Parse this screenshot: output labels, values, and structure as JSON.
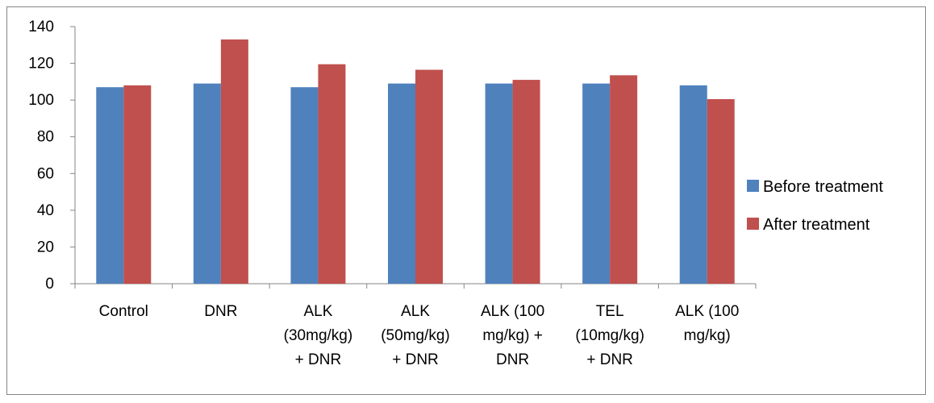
{
  "chart_data": {
    "type": "bar",
    "title": "",
    "xlabel": "",
    "ylabel": "",
    "ylim": [
      0,
      140
    ],
    "yticks": [
      0,
      20,
      40,
      60,
      80,
      100,
      120,
      140
    ],
    "grid": false,
    "legend_position": "right",
    "categories": [
      [
        "Control"
      ],
      [
        "DNR"
      ],
      [
        "ALK",
        "(30mg/kg)",
        "+ DNR"
      ],
      [
        "ALK",
        "(50mg/kg)",
        "+ DNR"
      ],
      [
        "ALK (100",
        "mg/kg) +",
        "DNR"
      ],
      [
        "TEL",
        "(10mg/kg)",
        "+ DNR"
      ],
      [
        "ALK (100",
        "mg/kg)"
      ]
    ],
    "series": [
      {
        "name": "Before treatment",
        "color": "#4F81BD",
        "values": [
          107,
          109,
          107,
          109,
          109,
          109,
          108
        ]
      },
      {
        "name": "After treatment",
        "color": "#C0504D",
        "values": [
          108,
          133,
          119.5,
          116.5,
          111,
          113.5,
          100.5
        ]
      }
    ]
  }
}
